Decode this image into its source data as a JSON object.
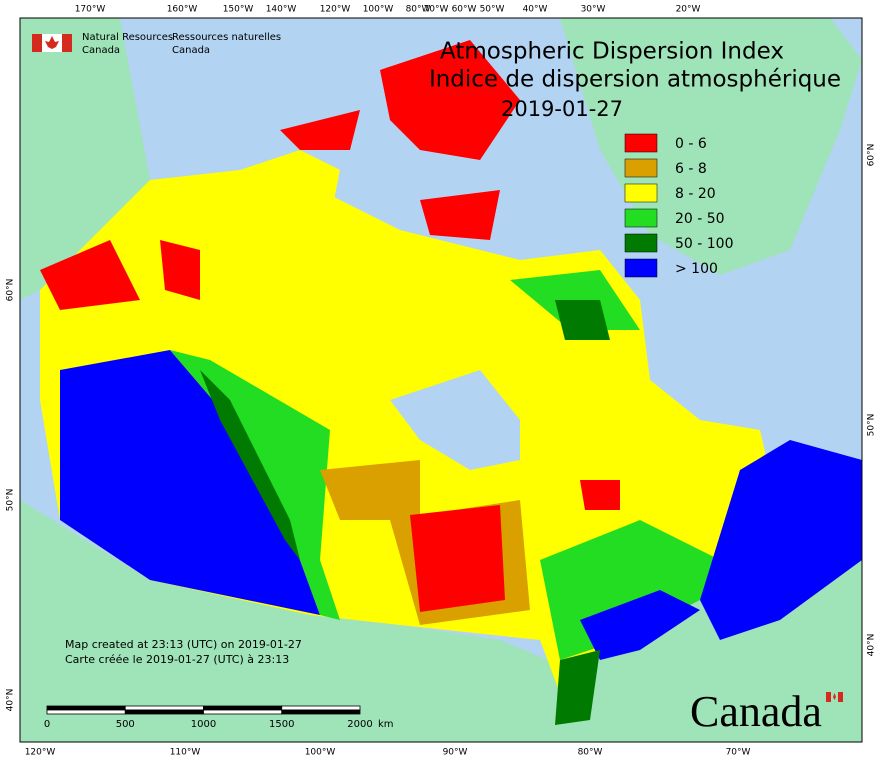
{
  "header": {
    "org_en": [
      "Natural Resources",
      "Canada"
    ],
    "org_fr": [
      "Ressources naturelles",
      "Canada"
    ]
  },
  "title": [
    "Atmospheric Dispersion Index",
    "Indice de dispersion atmosphérique",
    "2019-01-27"
  ],
  "legend": [
    {
      "label": "0 - 6",
      "color": "#ff0000"
    },
    {
      "label": "6 - 8",
      "color": "#d9a000"
    },
    {
      "label": "8 - 20",
      "color": "#ffff00"
    },
    {
      "label": "20 - 50",
      "color": "#22dd22"
    },
    {
      "label": "50 - 100",
      "color": "#007a00"
    },
    {
      "label": "> 100",
      "color": "#0000ff"
    }
  ],
  "graticule": {
    "top": [
      "170°W",
      "160°W",
      "150°W",
      "140°W",
      "120°W",
      "100°W",
      "80°W",
      "70°W",
      "60°W",
      "50°W",
      "40°W",
      "30°W",
      "20°W"
    ],
    "bottom": [
      "120°W",
      "110°W",
      "100°W",
      "90°W",
      "80°W",
      "70°W"
    ],
    "left": [
      "60°N",
      "50°N",
      "40°N"
    ],
    "right": [
      "60°N",
      "50°N",
      "40°N"
    ]
  },
  "notes": [
    "Map created at 23:13 (UTC) on 2019-01-27",
    "Carte créée le 2019-01-27 (UTC) à 23:13"
  ],
  "scale": {
    "ticks": [
      "0",
      "500",
      "1000",
      "1500",
      "2000"
    ],
    "unit": "km"
  },
  "wordmark": "Canada"
}
